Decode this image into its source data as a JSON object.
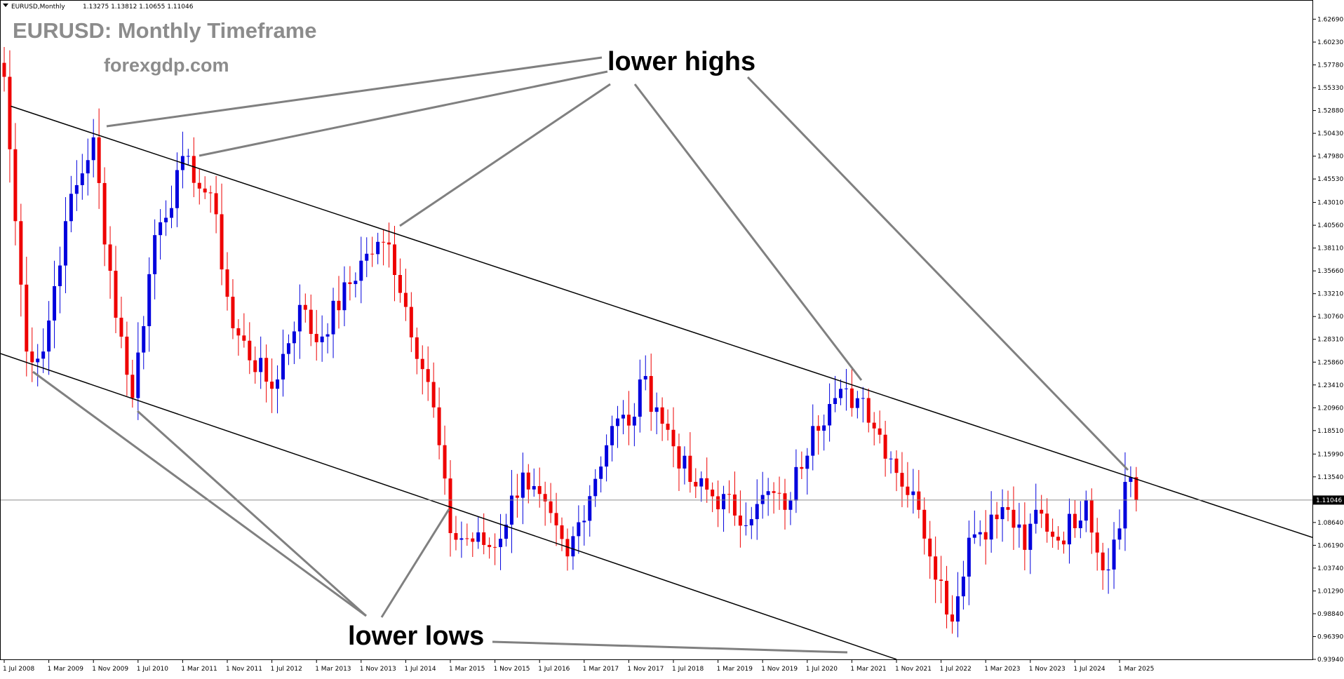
{
  "header": {
    "symbol": "EURUSD,Monthly",
    "ohlc": "1.13275 1.13812 1.10655 1.11046"
  },
  "title": "EURUSD: Monthly Timeframe",
  "subtitle": "forexgdp.com",
  "annotations": {
    "highs": "lower highs",
    "lows": "lower lows"
  },
  "colors": {
    "bull": "#0000dd",
    "bear": "#ee0000",
    "channel": "#000000",
    "pointer": "#808080",
    "current_line": "#8c8c8c",
    "price_box": "#000000"
  },
  "current_price": 1.11046,
  "current_price_label": "1.11046",
  "chart_data": {
    "type": "candlestick",
    "title": "EURUSD: Monthly Timeframe",
    "ylim": [
      0.9394,
      1.6475
    ],
    "y_ticks": [
      "1.62690",
      "1.60230",
      "1.57780",
      "1.55330",
      "1.52880",
      "1.50430",
      "1.47980",
      "1.45530",
      "1.43010",
      "1.40560",
      "1.38110",
      "1.35660",
      "1.33210",
      "1.30760",
      "1.28310",
      "1.25860",
      "1.23410",
      "1.20960",
      "1.18510",
      "1.15990",
      "1.13540",
      "1.11046",
      "1.08640",
      "1.06190",
      "1.03740",
      "1.01290",
      "0.98840",
      "0.96390",
      "0.93940"
    ],
    "x_ticks": [
      "1 Jul 2008",
      "1 Mar 2009",
      "1 Nov 2009",
      "1 Jul 2010",
      "1 Mar 2011",
      "1 Nov 2011",
      "1 Jul 2012",
      "1 Mar 2013",
      "1 Nov 2013",
      "1 Jul 2014",
      "1 Mar 2015",
      "1 Nov 2015",
      "1 Jul 2016",
      "1 Mar 2017",
      "1 Nov 2017",
      "1 Jul 2018",
      "1 Mar 2019",
      "1 Nov 2019",
      "1 Jul 2020",
      "1 Mar 2021",
      "1 Nov 2021",
      "1 Jul 2022",
      "1 Mar 2023",
      "1 Nov 2023",
      "1 Jul 2024",
      "1 Mar 2025"
    ],
    "anchors": [
      {
        "date": "2008-07",
        "close": 1.565
      },
      {
        "date": "2008-09",
        "close": 1.41
      },
      {
        "date": "2008-11",
        "close": 1.27
      },
      {
        "date": "2009-02",
        "close": 1.27
      },
      {
        "date": "2009-06",
        "close": 1.41
      },
      {
        "date": "2009-11",
        "close": 1.5
      },
      {
        "date": "2010-01",
        "close": 1.385
      },
      {
        "date": "2010-06",
        "close": 1.22
      },
      {
        "date": "2010-10",
        "close": 1.395
      },
      {
        "date": "2011-04",
        "close": 1.48
      },
      {
        "date": "2011-06",
        "close": 1.445
      },
      {
        "date": "2011-08",
        "close": 1.44
      },
      {
        "date": "2011-12",
        "close": 1.295
      },
      {
        "date": "2012-07",
        "close": 1.23
      },
      {
        "date": "2012-12",
        "close": 1.32
      },
      {
        "date": "2013-03",
        "close": 1.28
      },
      {
        "date": "2013-12",
        "close": 1.375
      },
      {
        "date": "2014-04",
        "close": 1.385
      },
      {
        "date": "2014-12",
        "close": 1.21
      },
      {
        "date": "2015-03",
        "close": 1.075
      },
      {
        "date": "2015-11",
        "close": 1.06
      },
      {
        "date": "2016-04",
        "close": 1.14
      },
      {
        "date": "2016-12",
        "close": 1.05
      },
      {
        "date": "2017-08",
        "close": 1.19
      },
      {
        "date": "2017-12",
        "close": 1.2
      },
      {
        "date": "2018-01",
        "close": 1.24
      },
      {
        "date": "2018-04",
        "close": 1.21
      },
      {
        "date": "2018-10",
        "close": 1.13
      },
      {
        "date": "2019-09",
        "close": 1.09
      },
      {
        "date": "2019-12",
        "close": 1.12
      },
      {
        "date": "2020-03",
        "close": 1.1
      },
      {
        "date": "2020-08",
        "close": 1.19
      },
      {
        "date": "2020-12",
        "close": 1.22
      },
      {
        "date": "2021-05",
        "close": 1.22
      },
      {
        "date": "2021-10",
        "close": 1.155
      },
      {
        "date": "2022-03",
        "close": 1.1
      },
      {
        "date": "2022-09",
        "close": 0.98
      },
      {
        "date": "2022-12",
        "close": 1.07
      },
      {
        "date": "2023-07",
        "close": 1.1
      },
      {
        "date": "2023-10",
        "close": 1.057
      },
      {
        "date": "2023-12",
        "close": 1.1
      },
      {
        "date": "2024-04",
        "close": 1.067
      },
      {
        "date": "2024-09",
        "close": 1.11
      },
      {
        "date": "2024-12",
        "close": 1.035
      },
      {
        "date": "2025-03",
        "close": 1.08
      },
      {
        "date": "2025-04",
        "close": 1.13
      },
      {
        "date": "2025-05",
        "close": 1.135
      },
      {
        "date": "2025-06",
        "close": 1.11046
      }
    ],
    "trendlines": [
      {
        "name": "upper channel",
        "p1": {
          "date": "2009-05",
          "price": 1.516
        },
        "p2": {
          "date": "2025-05",
          "price": 1.135
        },
        "extend": "right"
      },
      {
        "name": "lower channel",
        "p1": {
          "date": "2008-07",
          "price": 1.268
        },
        "p2": {
          "date": "2021-11",
          "price": 0.9394
        }
      }
    ]
  }
}
